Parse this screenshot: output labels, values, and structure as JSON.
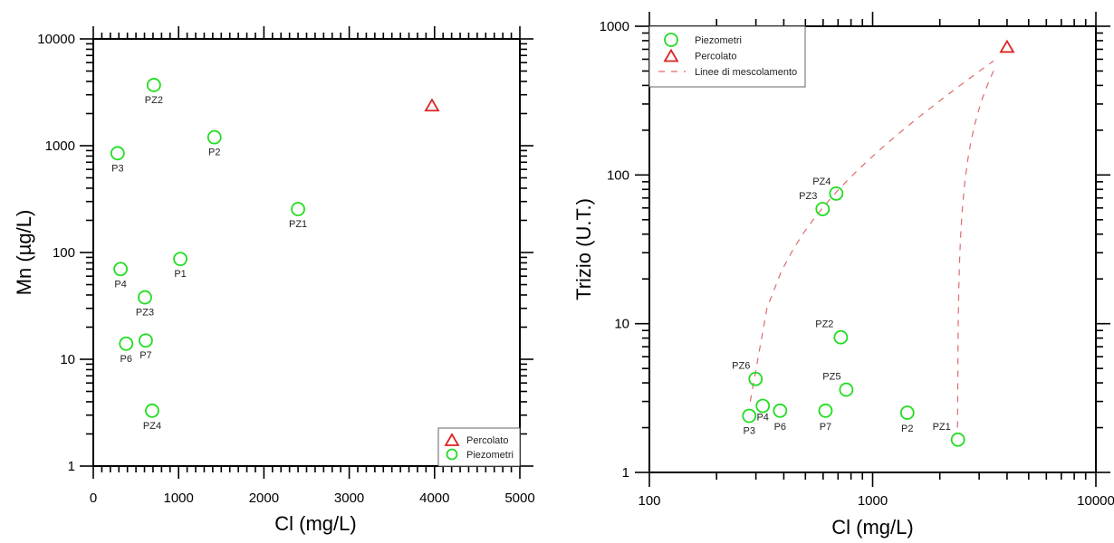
{
  "colors": {
    "piezometri": "#22dd22",
    "percolato": "#dd2222",
    "mixing": "#e06a6a",
    "axis": "#000000"
  },
  "chart_data": [
    {
      "type": "scatter",
      "xlabel": "Cl (mg/L)",
      "ylabel": "Mn (µg/L)",
      "xscale": "linear",
      "yscale": "log",
      "xlim": [
        0,
        5000
      ],
      "ylim": [
        1,
        10000
      ],
      "xticks": [
        0,
        1000,
        2000,
        3000,
        4000,
        5000
      ],
      "xtick_labels": [
        "0",
        "1000",
        "2000",
        "3000",
        "4000",
        "5000"
      ],
      "yticks": [
        1,
        10,
        100,
        1000,
        10000
      ],
      "ytick_labels": [
        "1",
        "10",
        "100",
        "1000",
        "10000"
      ],
      "legend": {
        "position": "bottom-right",
        "entries": [
          {
            "label": "Percolato",
            "marker": "triangle"
          },
          {
            "label": "Piezometri",
            "marker": "circle"
          }
        ]
      },
      "series": [
        {
          "name": "Piezometri",
          "marker": "circle",
          "points": [
            {
              "label": "PZ2",
              "x": 710,
              "y": 3700
            },
            {
              "label": "P3",
              "x": 285,
              "y": 850
            },
            {
              "label": "P2",
              "x": 1420,
              "y": 1200
            },
            {
              "label": "PZ1",
              "x": 2400,
              "y": 255
            },
            {
              "label": "P1",
              "x": 1020,
              "y": 87
            },
            {
              "label": "P4",
              "x": 320,
              "y": 70
            },
            {
              "label": "PZ3",
              "x": 605,
              "y": 38
            },
            {
              "label": "P6",
              "x": 385,
              "y": 14
            },
            {
              "label": "P7",
              "x": 615,
              "y": 15
            },
            {
              "label": "PZ4",
              "x": 690,
              "y": 3.3
            }
          ]
        },
        {
          "name": "Percolato",
          "marker": "triangle",
          "points": [
            {
              "label": "",
              "x": 3970,
              "y": 2350
            }
          ]
        }
      ]
    },
    {
      "type": "scatter",
      "xlabel": "Cl (mg/L)",
      "ylabel": "Trizio (U.T.)",
      "xscale": "log",
      "yscale": "log",
      "xlim": [
        100,
        10000
      ],
      "ylim": [
        1,
        1000
      ],
      "xticks": [
        100,
        1000,
        10000
      ],
      "xtick_labels": [
        "100",
        "1000",
        "10000"
      ],
      "yticks": [
        1,
        10,
        100,
        1000
      ],
      "ytick_labels": [
        "1",
        "10",
        "100",
        "1000"
      ],
      "legend": {
        "position": "top-left",
        "entries": [
          {
            "label": "Piezometri",
            "marker": "circle"
          },
          {
            "label": "Percolato",
            "marker": "triangle"
          },
          {
            "label": "Linee di mescolamento",
            "marker": "dashed-line"
          }
        ]
      },
      "series": [
        {
          "name": "Piezometri",
          "marker": "circle",
          "points": [
            {
              "label": "PZ4",
              "x": 687,
              "y": 75
            },
            {
              "label": "PZ3",
              "x": 597,
              "y": 59
            },
            {
              "label": "PZ2",
              "x": 720,
              "y": 8.1
            },
            {
              "label": "PZ6",
              "x": 299,
              "y": 4.25
            },
            {
              "label": "PZ5",
              "x": 762,
              "y": 3.6
            },
            {
              "label": "P3",
              "x": 280,
              "y": 2.4
            },
            {
              "label": "P4",
              "x": 322,
              "y": 2.8
            },
            {
              "label": "P6",
              "x": 385,
              "y": 2.6
            },
            {
              "label": "P7",
              "x": 615,
              "y": 2.6
            },
            {
              "label": "P2",
              "x": 1430,
              "y": 2.52
            },
            {
              "label": "PZ1",
              "x": 2410,
              "y": 1.66
            }
          ]
        },
        {
          "name": "Percolato",
          "marker": "triangle",
          "points": [
            {
              "label": "",
              "x": 4000,
              "y": 720
            }
          ]
        },
        {
          "name": "Linee di mescolamento",
          "marker": "dashed-line",
          "lines": [
            {
              "from": {
                "x": 283,
                "y": 3.0
              },
              "to": {
                "x": 3480,
                "y": 585
              }
            },
            {
              "from": {
                "x": 2400,
                "y": 2.0
              },
              "to": {
                "x": 3500,
                "y": 510
              }
            }
          ]
        }
      ]
    }
  ]
}
